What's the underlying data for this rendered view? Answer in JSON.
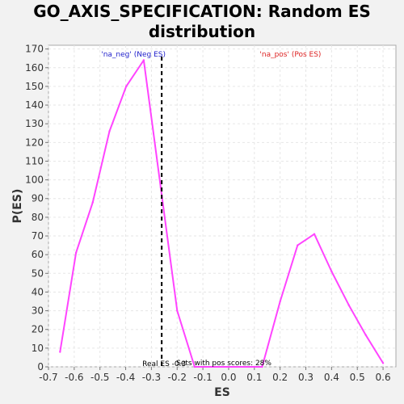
{
  "chart_data": {
    "type": "line",
    "title_line1": "GO_AXIS_SPECIFICATION: Random ES",
    "title_line2": "distribution",
    "xlabel": "ES",
    "ylabel": "P(ES)",
    "xlim": [
      -0.7,
      0.65
    ],
    "ylim": [
      0,
      172
    ],
    "x_ticks": [
      -0.7,
      -0.6,
      -0.5,
      -0.4,
      -0.3,
      -0.2,
      -0.1,
      0.0,
      0.1,
      0.2,
      0.3,
      0.4,
      0.5,
      0.6
    ],
    "x_tick_labels": [
      "-0.7",
      "-0.6",
      "-0.5",
      "-0.4",
      "-0.3",
      "-0.2",
      "-0.1",
      "0.0",
      "0.1",
      "0.2",
      "0.3",
      "0.4",
      "0.5",
      "0.6"
    ],
    "y_ticks": [
      0,
      10,
      20,
      30,
      40,
      50,
      60,
      70,
      80,
      90,
      100,
      110,
      120,
      130,
      140,
      150,
      160,
      170
    ],
    "y_tick_labels": [
      "0",
      "10",
      "20",
      "30",
      "40",
      "50",
      "60",
      "70",
      "80",
      "90",
      "100",
      "110",
      "120",
      "130",
      "140",
      "150",
      "160",
      "170"
    ],
    "grid": true,
    "series": [
      {
        "color": "#ff44ff",
        "x": [
          -0.655,
          -0.593,
          -0.528,
          -0.463,
          -0.398,
          -0.33,
          -0.264,
          -0.2,
          -0.132,
          0.13,
          0.2,
          0.268,
          0.333,
          0.4,
          0.467,
          0.533,
          0.6
        ],
        "y": [
          8,
          61,
          88,
          126,
          150,
          164,
          96,
          30,
          0,
          0,
          35,
          65,
          71,
          51,
          33,
          17,
          2
        ]
      }
    ],
    "real_es_line": {
      "x": -0.26,
      "color": "#000000"
    },
    "annotations": {
      "neg_label": "'na_neg' (Neg ES)",
      "neg_color": "#2222cc",
      "pos_label": "'na_pos' (Pos ES)",
      "pos_color": "#dd2222",
      "real_es_label": "Real ES -0.3",
      "sets_label": "Sets with pos scores: 28%"
    }
  }
}
